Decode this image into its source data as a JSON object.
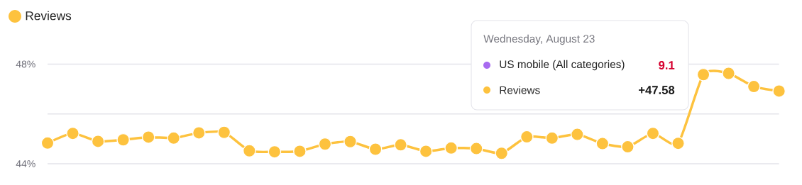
{
  "chart_data": {
    "type": "line",
    "categories": [
      null,
      null,
      null,
      null,
      null,
      null,
      null,
      null,
      null,
      null,
      null,
      null,
      null,
      null,
      null,
      null,
      null,
      null,
      null,
      null,
      null,
      null,
      null,
      null,
      null,
      null,
      null,
      null,
      null,
      null
    ],
    "series": [
      {
        "name": "Reviews",
        "color": "#fdc23e",
        "values": [
          44.83,
          45.22,
          44.9,
          44.96,
          45.07,
          45.03,
          45.24,
          45.26,
          44.52,
          44.48,
          44.5,
          44.79,
          44.89,
          44.58,
          44.76,
          44.5,
          44.63,
          44.61,
          44.42,
          45.08,
          45.03,
          45.18,
          44.81,
          44.68,
          45.22,
          44.82,
          47.58,
          47.63,
          47.1,
          46.92
        ]
      }
    ],
    "ylim": [
      44,
      48
    ],
    "yticks": [
      {
        "value": 44,
        "label": "44%"
      },
      {
        "value": 46,
        "label": null
      },
      {
        "value": 48,
        "label": "48%"
      }
    ],
    "grid": "y",
    "legend": "top left",
    "marker": "circle",
    "line_style": "solid",
    "annotations": [
      "Wednesday, August 23",
      "US mobile (All categories)",
      "9.1",
      "Reviews",
      "+47.58"
    ]
  }
}
